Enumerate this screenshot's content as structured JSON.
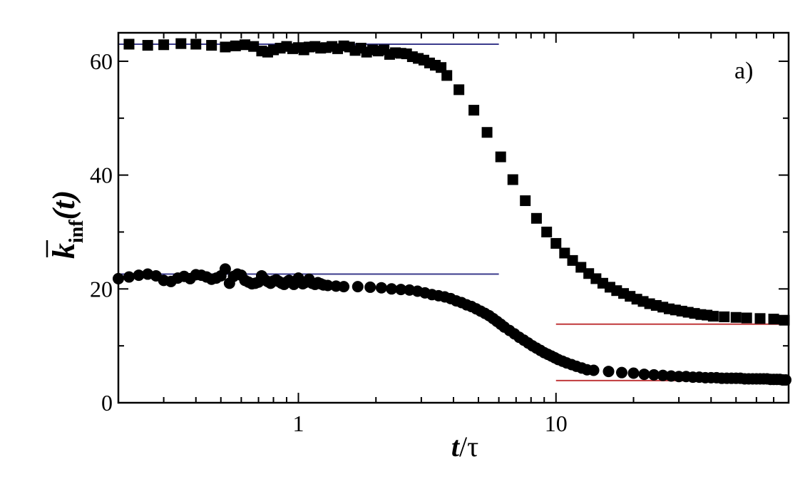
{
  "chart_data": {
    "type": "scatter",
    "panel_label": "a)",
    "x_scale": "log",
    "xlim": [
      0.2,
      80
    ],
    "ylim": [
      0,
      65
    ],
    "x_ticks": [
      1,
      10
    ],
    "x_tick_labels": [
      "1",
      "10"
    ],
    "y_ticks": [
      0,
      20,
      40,
      60
    ],
    "y_tick_labels": [
      "0",
      "20",
      "40",
      "60"
    ],
    "xlabel": {
      "main": "t",
      "rest": "/τ"
    },
    "ylabel": {
      "main": "k",
      "sub": "inf",
      "arg": "(t)"
    },
    "grid": false,
    "series": [
      {
        "marker": "square",
        "color": "#000000",
        "x": [
          0.22,
          0.26,
          0.3,
          0.35,
          0.4,
          0.46,
          0.52,
          0.57,
          0.62,
          0.67,
          0.72,
          0.76,
          0.8,
          0.85,
          0.9,
          0.95,
          1.0,
          1.05,
          1.1,
          1.16,
          1.22,
          1.28,
          1.35,
          1.42,
          1.5,
          1.58,
          1.66,
          1.75,
          1.84,
          1.94,
          2.04,
          2.15,
          2.26,
          2.38,
          2.5,
          2.63,
          2.77,
          2.92,
          3.07,
          3.23,
          3.4,
          3.58,
          3.77,
          4.2,
          4.8,
          5.4,
          6.1,
          6.8,
          7.6,
          8.4,
          9.2,
          10.0,
          10.8,
          11.6,
          12.5,
          13.4,
          14.3,
          15.2,
          16.2,
          17.2,
          18.3,
          19.4,
          20.6,
          21.8,
          23.1,
          24.5,
          26.0,
          27.5,
          29.1,
          30.8,
          32.6,
          34.5,
          36.5,
          38.6,
          40.8,
          45,
          50,
          55,
          62,
          70,
          77
        ],
        "y": [
          63.0,
          62.8,
          62.9,
          63.1,
          63.0,
          62.8,
          62.5,
          62.7,
          62.9,
          62.6,
          61.8,
          61.6,
          62.0,
          62.3,
          62.6,
          62.2,
          62.4,
          62.0,
          62.5,
          62.6,
          62.3,
          62.4,
          62.6,
          62.2,
          62.7,
          62.5,
          61.9,
          62.3,
          61.6,
          62.0,
          61.8,
          62.0,
          61.2,
          61.5,
          61.4,
          61.3,
          60.8,
          60.5,
          60.2,
          59.7,
          59.3,
          58.9,
          57.5,
          55.0,
          51.4,
          47.5,
          43.2,
          39.2,
          35.5,
          32.4,
          30.0,
          28.0,
          26.3,
          25.0,
          23.8,
          22.7,
          21.8,
          21.0,
          20.3,
          19.7,
          19.2,
          18.7,
          18.2,
          17.8,
          17.4,
          17.1,
          16.8,
          16.5,
          16.3,
          16.1,
          15.9,
          15.7,
          15.5,
          15.4,
          15.2,
          15.1,
          15.0,
          14.9,
          14.8,
          14.7,
          14.5
        ]
      },
      {
        "marker": "circle",
        "color": "#000000",
        "x": [
          0.2,
          0.22,
          0.24,
          0.26,
          0.28,
          0.3,
          0.32,
          0.34,
          0.36,
          0.38,
          0.4,
          0.42,
          0.44,
          0.46,
          0.48,
          0.5,
          0.52,
          0.54,
          0.56,
          0.58,
          0.6,
          0.62,
          0.64,
          0.66,
          0.68,
          0.7,
          0.72,
          0.74,
          0.76,
          0.78,
          0.8,
          0.82,
          0.84,
          0.86,
          0.88,
          0.9,
          0.92,
          0.94,
          0.96,
          0.98,
          1.0,
          1.02,
          1.04,
          1.06,
          1.08,
          1.1,
          1.13,
          1.16,
          1.19,
          1.22,
          1.25,
          1.3,
          1.4,
          1.5,
          1.7,
          1.9,
          2.1,
          2.3,
          2.5,
          2.7,
          2.9,
          3.1,
          3.3,
          3.5,
          3.7,
          3.9,
          4.1,
          4.3,
          4.5,
          4.7,
          4.9,
          5.1,
          5.3,
          5.5,
          5.7,
          5.9,
          6.1,
          6.3,
          6.6,
          6.9,
          7.2,
          7.5,
          7.8,
          8.1,
          8.4,
          8.7,
          9.0,
          9.3,
          9.6,
          9.9,
          10.2,
          10.6,
          11.0,
          11.5,
          12.0,
          12.6,
          13.2,
          14.0,
          16.0,
          18.0,
          20.0,
          22.0,
          24.0,
          26.0,
          28.0,
          30.0,
          32.0,
          34.0,
          36.0,
          38.0,
          40.0,
          42.0,
          44.0,
          46.0,
          48.0,
          50.0,
          52.0,
          54.0,
          56.0,
          58.0,
          60.0,
          62.0,
          64.0,
          66.0,
          68.0,
          70.0,
          72.0,
          74.0,
          76.0,
          78.0
        ],
        "y": [
          21.8,
          22.1,
          22.4,
          22.6,
          22.3,
          21.5,
          21.3,
          21.9,
          22.2,
          21.8,
          22.5,
          22.4,
          22.1,
          21.7,
          21.9,
          22.3,
          23.5,
          21.0,
          22.2,
          22.6,
          22.4,
          21.5,
          21.2,
          20.9,
          21.0,
          21.2,
          22.3,
          21.6,
          21.3,
          21.0,
          21.4,
          21.6,
          21.3,
          21.0,
          20.8,
          21.2,
          21.5,
          21.1,
          20.8,
          21.3,
          21.9,
          21.2,
          20.9,
          21.1,
          21.3,
          21.7,
          21.0,
          20.8,
          21.1,
          20.9,
          20.7,
          20.6,
          20.5,
          20.4,
          20.4,
          20.3,
          20.2,
          20.0,
          19.9,
          19.8,
          19.6,
          19.3,
          19.0,
          18.8,
          18.6,
          18.3,
          17.9,
          17.6,
          17.2,
          16.9,
          16.5,
          16.1,
          15.7,
          15.3,
          14.8,
          14.3,
          13.8,
          13.3,
          12.7,
          12.1,
          11.5,
          11.0,
          10.5,
          10.0,
          9.6,
          9.2,
          8.8,
          8.5,
          8.2,
          7.9,
          7.6,
          7.3,
          7.0,
          6.7,
          6.4,
          6.1,
          5.8,
          5.7,
          5.5,
          5.3,
          5.2,
          5.0,
          4.9,
          4.8,
          4.7,
          4.6,
          4.6,
          4.5,
          4.5,
          4.4,
          4.4,
          4.4,
          4.3,
          4.3,
          4.3,
          4.3,
          4.3,
          4.2,
          4.2,
          4.2,
          4.2,
          4.2,
          4.2,
          4.2,
          4.1,
          4.1,
          4.1,
          4.1,
          4.0,
          4.0
        ]
      }
    ],
    "reference_lines": [
      {
        "color": "#3b3b8c",
        "y": 63.0,
        "x_range": [
          0.2,
          6.0
        ]
      },
      {
        "color": "#3b3b8c",
        "y": 22.6,
        "x_range": [
          0.2,
          6.0
        ]
      },
      {
        "color": "#c0393b",
        "y": 13.8,
        "x_range": [
          10.0,
          80.0
        ]
      },
      {
        "color": "#c0393b",
        "y": 3.9,
        "x_range": [
          10.0,
          80.0
        ]
      }
    ]
  }
}
